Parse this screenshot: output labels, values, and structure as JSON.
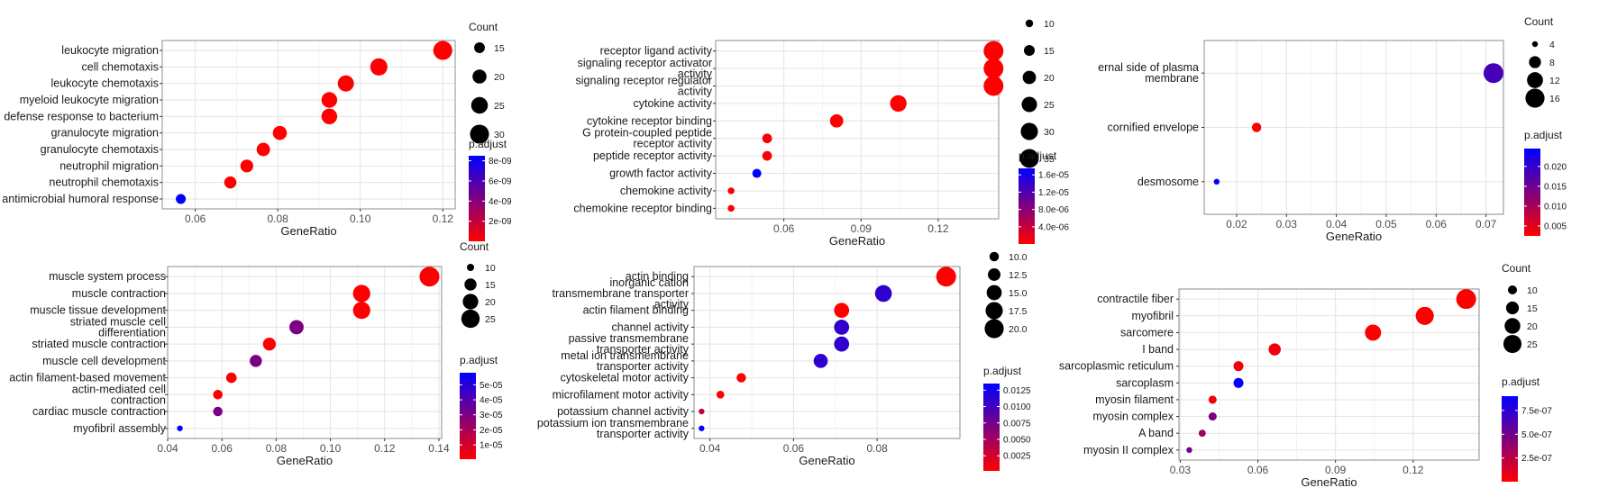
{
  "chart_data": [
    {
      "type": "scatter",
      "xlabel": "GeneRatio",
      "xlim": [
        0.052,
        0.123
      ],
      "xticks": [
        0.06,
        0.08,
        0.1,
        0.12
      ],
      "xtick_labels": [
        "0.06",
        "0.08",
        "0.10",
        "0.12"
      ],
      "categories": [
        "leukocyte migration",
        "cell chemotaxis",
        "leukocyte chemotaxis",
        "myeloid leukocyte migration",
        "defense response to bacterium",
        "granulocyte migration",
        "granulocyte chemotaxis",
        "neutrophil migration",
        "neutrophil chemotaxis",
        "antimicrobial humoral response"
      ],
      "x": [
        0.12,
        0.1045,
        0.0965,
        0.0925,
        0.0925,
        0.0805,
        0.0765,
        0.0725,
        0.0685,
        0.0565
      ],
      "count": [
        30,
        26,
        24,
        23,
        23,
        20,
        19,
        18,
        17,
        14
      ],
      "p_adjust": [
        2e-11,
        3e-11,
        2e-11,
        2e-11,
        2e-11,
        1e-11,
        1e-11,
        1e-11,
        1e-11,
        8.5e-09
      ],
      "size_legend": {
        "title": "Count",
        "values": [
          15,
          20,
          25,
          30
        ],
        "labels": [
          "15",
          "20",
          "25",
          "30"
        ],
        "range": [
          10,
          32
        ]
      },
      "color_legend": {
        "title": "p.adjust",
        "min": 1e-11,
        "max": 8.5e-09,
        "ticks": [
          8e-09,
          6e-09,
          4e-09,
          2e-09
        ],
        "tick_labels": [
          "8e-09",
          "6e-09",
          "4e-09",
          "2e-09"
        ]
      }
    },
    {
      "type": "scatter",
      "xlabel": "GeneRatio",
      "xlim": [
        0.0335,
        0.1435
      ],
      "xticks": [
        0.06,
        0.09,
        0.12
      ],
      "xtick_labels": [
        "0.06",
        "0.09",
        "0.12"
      ],
      "categories": [
        "receptor ligand activity",
        "signaling receptor activator\nactivity",
        "signaling receptor regulator\nactivity",
        "cytokine activity",
        "cytokine receptor binding",
        "G protein-coupled peptide\nreceptor activity",
        "peptide receptor activity",
        "growth factor activity",
        "chemokine activity",
        "chemokine receptor binding"
      ],
      "x": [
        0.1415,
        0.1415,
        0.1415,
        0.1045,
        0.0805,
        0.0535,
        0.0535,
        0.0495,
        0.0395,
        0.0395
      ],
      "count": [
        38,
        38,
        38,
        28,
        20,
        13,
        13,
        12,
        9,
        9
      ],
      "p_adjust": [
        1e-08,
        1e-08,
        1e-08,
        1e-08,
        2e-08,
        5e-07,
        5e-07,
        1.75e-05,
        2e-07,
        2e-07
      ],
      "size_legend": {
        "title": "",
        "values": [
          10,
          15,
          20,
          25,
          30,
          35
        ],
        "labels": [
          "10",
          "15",
          "20",
          "25",
          "30",
          "35"
        ],
        "range": [
          8,
          38
        ]
      },
      "color_legend": {
        "title": "p.adjust",
        "min": 1e-08,
        "max": 1.75e-05,
        "ticks": [
          1.6e-05,
          1.2e-05,
          8e-06,
          4e-06
        ],
        "tick_labels": [
          "1.6e-05",
          "1.2e-05",
          "8.0e-06",
          "4.0e-06"
        ]
      }
    },
    {
      "type": "scatter",
      "xlabel": "GeneRatio",
      "xlim": [
        0.0135,
        0.0735
      ],
      "xticks": [
        0.02,
        0.03,
        0.04,
        0.05,
        0.06,
        0.07
      ],
      "xtick_labels": [
        "0.02",
        "0.03",
        "0.04",
        "0.05",
        "0.06",
        "0.07"
      ],
      "categories": [
        "ernal side of plasma\nmembrane",
        "cornified envelope",
        "desmosome"
      ],
      "x": [
        0.0715,
        0.024,
        0.016
      ],
      "count": [
        17,
        6,
        4
      ],
      "p_adjust": [
        0.0185,
        0.0026,
        0.0245
      ],
      "size_legend": {
        "title": "Count",
        "values": [
          4,
          8,
          12,
          16
        ],
        "labels": [
          "4",
          "8",
          "12",
          "16"
        ],
        "range": [
          4,
          17
        ]
      },
      "color_legend": {
        "title": "p.adjust",
        "min": 0.0025,
        "max": 0.0245,
        "ticks": [
          0.02,
          0.015,
          0.01,
          0.005
        ],
        "tick_labels": [
          "0.020",
          "0.015",
          "0.010",
          "0.005"
        ]
      }
    },
    {
      "type": "scatter",
      "xlabel": "GeneRatio",
      "xlim": [
        0.04,
        0.141
      ],
      "xticks": [
        0.04,
        0.06,
        0.08,
        0.1,
        0.12,
        0.14
      ],
      "xtick_labels": [
        "0.04",
        "0.06",
        "0.08",
        "0.10",
        "0.12",
        "0.14"
      ],
      "categories": [
        "muscle system process",
        "muscle contraction",
        "muscle tissue development",
        "striated muscle cell\ndifferentiation",
        "striated muscle contraction",
        "muscle cell development",
        "actin filament-based movement",
        "actin-mediated cell\ncontraction",
        "cardiac muscle contraction",
        "myofibril assembly"
      ],
      "x": [
        0.1365,
        0.1115,
        0.1115,
        0.0875,
        0.0775,
        0.0725,
        0.0635,
        0.0585,
        0.0585,
        0.0445
      ],
      "count": [
        28,
        23,
        23,
        18,
        16,
        15,
        13,
        12,
        12,
        9
      ],
      "p_adjust": [
        5e-07,
        8e-07,
        8e-07,
        3e-05,
        5e-07,
        3e-05,
        5e-07,
        1e-06,
        3e-05,
        5.8e-05
      ],
      "size_legend": {
        "title": "Count",
        "values": [
          10,
          15,
          20,
          25
        ],
        "labels": [
          "10",
          "15",
          "20",
          "25"
        ],
        "range": [
          9,
          28
        ]
      },
      "color_legend": {
        "title": "p.adjust",
        "min": 5e-07,
        "max": 5.8e-05,
        "ticks": [
          5e-05,
          4e-05,
          3e-05,
          2e-05,
          1e-05
        ],
        "tick_labels": [
          "5e-05",
          "4e-05",
          "3e-05",
          "2e-05",
          "1e-05"
        ]
      }
    },
    {
      "type": "scatter",
      "xlabel": "GeneRatio",
      "xlim": [
        0.0362,
        0.0998
      ],
      "xticks": [
        0.04,
        0.06,
        0.08
      ],
      "xtick_labels": [
        "0.04",
        "0.06",
        "0.08"
      ],
      "categories": [
        "actin binding",
        "inorganic cation\ntransmembrane transporter\nactivity",
        "actin filament binding",
        "channel activity",
        "passive transmembrane\ntransporter activity",
        "metal ion transmembrane\ntransporter activity",
        "cytoskeletal motor activity",
        "microfilament motor activity",
        "potassium channel activity",
        "potassium ion transmembrane\ntransporter activity"
      ],
      "x": [
        0.0965,
        0.0815,
        0.0715,
        0.0715,
        0.0715,
        0.0665,
        0.0475,
        0.0425,
        0.038,
        0.038
      ],
      "count": [
        21,
        17,
        15,
        15,
        15,
        14,
        10,
        9,
        8,
        8
      ],
      "p_adjust": [
        0.0002,
        0.011,
        0.0002,
        0.011,
        0.011,
        0.011,
        0.0002,
        0.0002,
        0.0035,
        0.0135
      ],
      "size_legend": {
        "title": "",
        "values": [
          10.0,
          12.5,
          15.0,
          17.5,
          20.0
        ],
        "labels": [
          "10.0",
          "12.5",
          "15.0",
          "17.5",
          "20.0"
        ],
        "range": [
          8,
          21
        ]
      },
      "color_legend": {
        "title": "p.adjust",
        "min": 0.0002,
        "max": 0.0135,
        "ticks": [
          0.0125,
          0.01,
          0.0075,
          0.005,
          0.0025
        ],
        "tick_labels": [
          "0.0125",
          "0.0100",
          "0.0075",
          "0.0050",
          "0.0025"
        ]
      }
    },
    {
      "type": "scatter",
      "xlabel": "GeneRatio",
      "xlim": [
        0.0295,
        0.1455
      ],
      "xticks": [
        0.03,
        0.06,
        0.09,
        0.12
      ],
      "xtick_labels": [
        "0.03",
        "0.06",
        "0.09",
        "0.12"
      ],
      "categories": [
        "contractile fiber",
        "myofibril",
        "sarcomere",
        "I band",
        "sarcoplasmic reticulum",
        "sarcoplasm",
        "myosin filament",
        "myosin complex",
        "A band",
        "myosin II complex"
      ],
      "x": [
        0.1405,
        0.1245,
        0.1045,
        0.0665,
        0.0525,
        0.0525,
        0.0425,
        0.0425,
        0.0385,
        0.0335
      ],
      "count": [
        29,
        25,
        21,
        14,
        11,
        11,
        9,
        9,
        8,
        7
      ],
      "p_adjust": [
        1e-09,
        1e-09,
        1e-09,
        5e-08,
        5e-08,
        9e-07,
        5e-08,
        4.5e-07,
        3.5e-07,
        5e-07
      ],
      "size_legend": {
        "title": "Count",
        "values": [
          10,
          15,
          20,
          25
        ],
        "labels": [
          "10",
          "15",
          "20",
          "25"
        ],
        "range": [
          7,
          29
        ]
      },
      "color_legend": {
        "title": "p.adjust",
        "min": 1e-09,
        "max": 9e-07,
        "ticks": [
          7.5e-07,
          5e-07,
          2.5e-07
        ],
        "tick_labels": [
          "7.5e-07",
          "5.0e-07",
          "2.5e-07"
        ]
      }
    }
  ]
}
